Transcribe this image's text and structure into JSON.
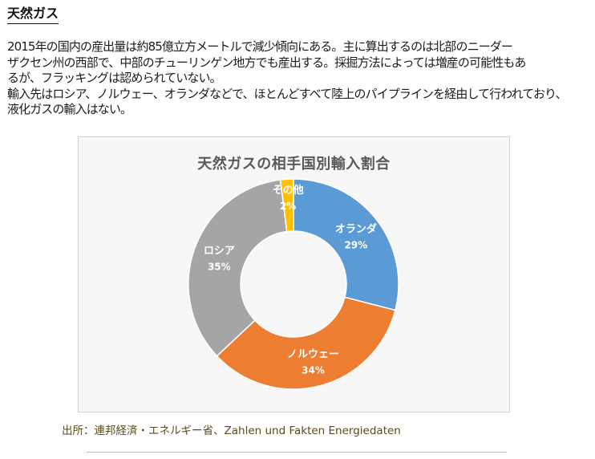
{
  "section": {
    "heading": "天然ガス",
    "paragraphs": [
      "2015年の国内の産出量は約85億立方メートルで減少傾向にある。主に算出するのは北部のニーダー",
      "ザクセン州の西部で、中部のチューリンゲン地方でも産出する。採掘方法によっては増産の可能性もあ",
      "るが、フラッキングは認められていない。",
      "輸入先はロシア、ノルウェー、オランダなどで、ほとんどすべて陸上のパイプラインを経由して行われており、",
      "液化ガスの輸入はない。"
    ]
  },
  "chart_data": {
    "type": "pie",
    "variant": "donut",
    "title": "天然ガスの相手国別輸入割合",
    "categories": [
      "オランダ",
      "ノルウェー",
      "ロシア",
      "その他"
    ],
    "values": [
      29,
      34,
      35,
      2
    ],
    "value_labels": [
      "29%",
      "34%",
      "35%",
      "2%"
    ],
    "colors": [
      "#5b9bd5",
      "#ed7d31",
      "#a5a5a5",
      "#ffc000"
    ],
    "start": "top, clockwise",
    "legend": "none"
  },
  "source": {
    "text": "出所：連邦経済・エネルギー省、Zahlen und Fakten Energiedaten"
  }
}
